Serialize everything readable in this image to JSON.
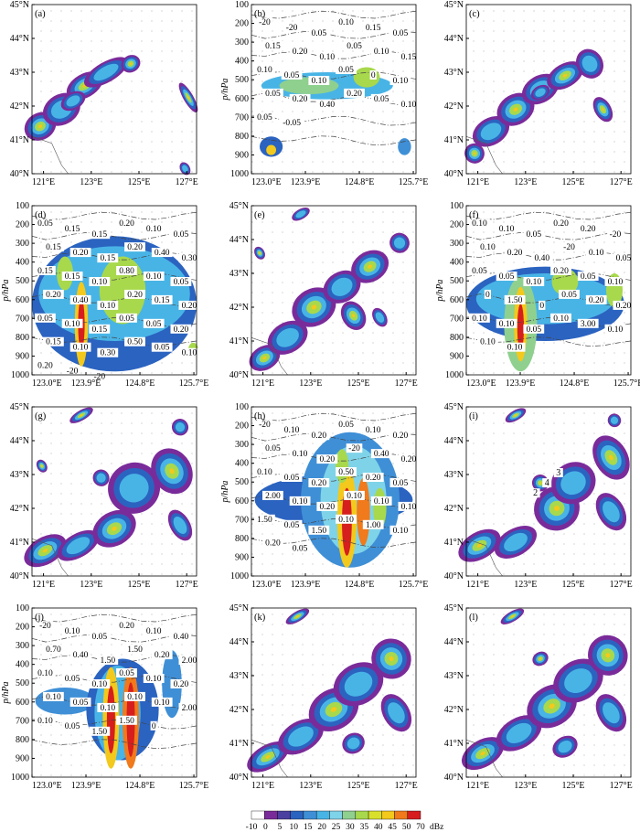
{
  "colorbar": {
    "levels": [
      "-10",
      "0",
      "5",
      "10",
      "15",
      "20",
      "25",
      "30",
      "35",
      "40",
      "45",
      "50",
      "70"
    ],
    "unit": "dBz",
    "colors": [
      "#ffffff",
      "#7a2b9a",
      "#4b3fa0",
      "#2b63c0",
      "#3f8fd6",
      "#48b4e6",
      "#7fd3e8",
      "#8fd08f",
      "#a8d84c",
      "#d8e02c",
      "#f2c91c",
      "#f07a1c",
      "#d61e1e"
    ]
  },
  "panels": [
    {
      "id": "a",
      "label": "(a)",
      "type": "map"
    },
    {
      "id": "b",
      "label": "(b)",
      "type": "section",
      "labels": [
        "-20",
        "-20",
        "0.05",
        "0.10",
        "0.15",
        "0.05",
        "0.15",
        "0.20",
        "0.10",
        "0.05",
        "0.10",
        "0.15",
        "0.10",
        "0.05",
        "0.10",
        "0.05",
        "0",
        "0.10",
        "0.05",
        "0.20",
        "0.40",
        "0.20",
        "0.05",
        "0.10",
        "0.05",
        "-0.05"
      ]
    },
    {
      "id": "c",
      "label": "(c)",
      "type": "map"
    },
    {
      "id": "d",
      "label": "(d)",
      "type": "section",
      "labels": [
        "0.05",
        "0.15",
        "0.15",
        "0.20",
        "0.10",
        "0.05",
        "0.15",
        "0.20",
        "0.15",
        "0.20",
        "0.40",
        "0.30",
        "0.15",
        "0.15",
        "0.10",
        "0.80",
        "0.10",
        "0.05",
        "0.20",
        "0.40",
        "0.10",
        "0.20",
        "0.15",
        "0.20",
        "0.05",
        "0.10",
        "0.15",
        "0.05",
        "0.05",
        "0.20",
        "0.15",
        "0.10",
        "0.30",
        "0.50",
        "0.05",
        "0.10",
        "0.20",
        "-20",
        "-20"
      ]
    },
    {
      "id": "e",
      "label": "(e)",
      "type": "map"
    },
    {
      "id": "f",
      "label": "(f)",
      "type": "section",
      "labels": [
        "0.10",
        "0.10",
        "0.05",
        "0.20",
        "0.20",
        "-20",
        "0.10",
        "0.20",
        "0.40",
        "-20",
        "0.10",
        "0.05",
        "0.05",
        "0.05",
        "0.10",
        "0.20",
        "0.05",
        "0.10",
        "0",
        "1.50",
        "0",
        "0.05",
        "0.20",
        "0.20",
        "0.10",
        "0.10",
        "0.05",
        "0.10",
        "3.00",
        "0.10",
        "0.10",
        "0.10"
      ]
    },
    {
      "id": "g",
      "label": "(g)",
      "type": "map"
    },
    {
      "id": "h",
      "label": "(h)",
      "type": "section",
      "labels": [
        "-20",
        "0.10",
        "0.20",
        "0.05",
        "0.10",
        "0.20",
        "0.05",
        "0.10",
        "0.20",
        "-20",
        "0.40",
        "0.20",
        "0.10",
        "0.05",
        "0.20",
        "0.50",
        "0.20",
        "0.05",
        "2.00",
        "0.10",
        "0.20",
        "0.10",
        "0.10",
        "0.10",
        "1.50",
        "0.05",
        "1.50",
        "0.10",
        "1.00",
        "0.10",
        "0.20",
        "0.05"
      ]
    },
    {
      "id": "i",
      "label": "(i)",
      "type": "map",
      "markers": [
        "2",
        "4",
        "3"
      ]
    },
    {
      "id": "j",
      "label": "(j)",
      "type": "section",
      "labels": [
        "-20",
        "0.10",
        "0.05",
        "0.20",
        "0.10",
        "0.40",
        "0.70",
        "0.40",
        "1.50",
        "1.50",
        "0.20",
        "2.00",
        "0.10",
        "0.05",
        "0.10",
        "0.05",
        "0.10",
        "0.20",
        "0.10",
        "0.05",
        "0.10",
        "0.10",
        "0.10",
        "2.00",
        "0.10",
        "0.05",
        "1.50",
        "1.50",
        "0"
      ]
    },
    {
      "id": "k",
      "label": "(k)",
      "type": "map"
    },
    {
      "id": "l",
      "label": "(l)",
      "type": "map"
    }
  ],
  "map_axes": {
    "xticks": [
      "121°E",
      "123°E",
      "125°E",
      "127°E"
    ],
    "yticks": [
      "45°N",
      "44°N",
      "43°N",
      "42°N",
      "41°N",
      "40°N"
    ]
  },
  "section_axes": {
    "xticks": [
      "123.0°E",
      "123.9°E",
      "124.8°E",
      "125.7°E"
    ],
    "yticks": [
      "100",
      "200",
      "300",
      "400",
      "500",
      "600",
      "700",
      "800",
      "900",
      "1000"
    ],
    "ylabel": "p/hPa"
  }
}
